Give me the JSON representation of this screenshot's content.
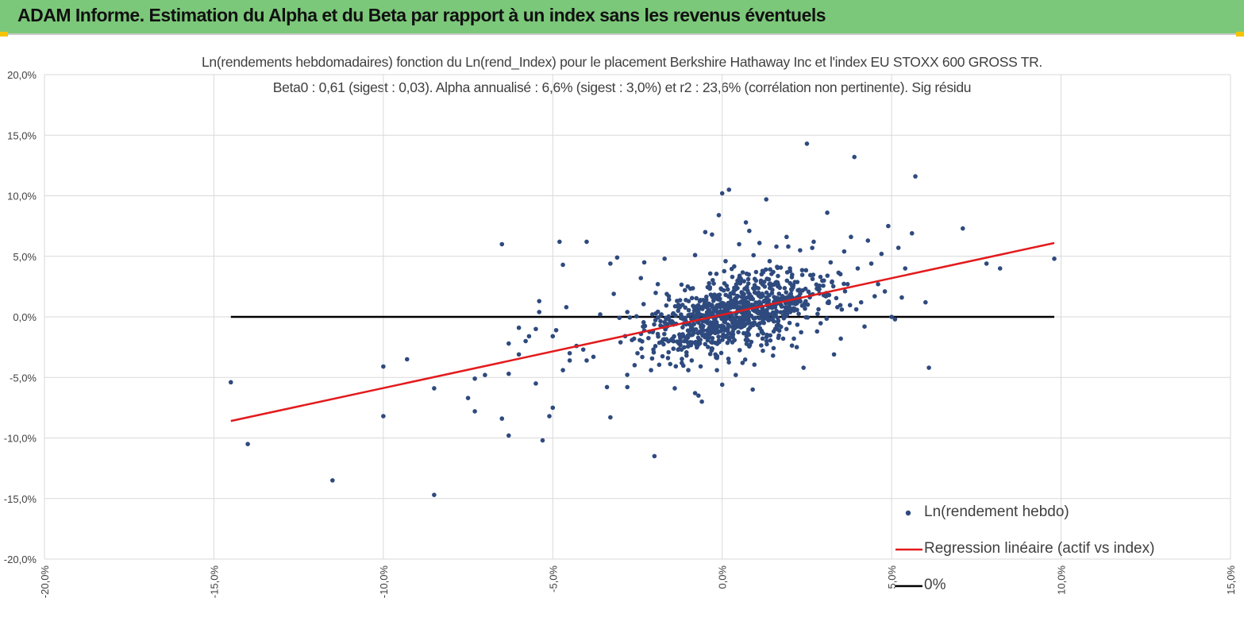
{
  "header": {
    "title": "ADAM Informe. Estimation du Alpha et du Beta par rapport à un index sans les revenus éventuels"
  },
  "colors": {
    "header_bg": "#7cc87a",
    "accent": "#f5c400",
    "points": "#2e4a7e",
    "regression": "#e31a1c",
    "zero_line": "#000000"
  },
  "chart_data": {
    "type": "scatter",
    "title": "Ln(rendements hebdomadaires) fonction du Ln(rend_Index) pour le placement Berkshire Hathaway Inc et l'index EU STOXX 600 GROSS TR.",
    "subtitle": "Beta0 : 0,61 (sigest : 0,03). Alpha annualisé : 6,6% (sigest : 3,0%) et r2 : 23,6% (corrélation non pertinente). Sig résidu",
    "xlim": [
      -0.2,
      0.15
    ],
    "ylim": [
      -0.2,
      0.2
    ],
    "x_ticks": [
      -0.2,
      -0.15,
      -0.1,
      -0.05,
      0.0,
      0.05,
      0.1,
      0.15
    ],
    "x_tick_labels": [
      "-20,0%",
      "-15,0%",
      "-10,0%",
      "-5,0%",
      "0,0%",
      "5,0%",
      "10,0%",
      "15,0%"
    ],
    "y_ticks": [
      0.2,
      0.15,
      0.1,
      0.05,
      0.0,
      -0.05,
      -0.1,
      -0.15,
      -0.2
    ],
    "y_tick_labels": [
      "20,0%",
      "15,0%",
      "10,0%",
      "5,0%",
      "0,0%",
      "-5,0%",
      "-10,0%",
      "-15,0%",
      "-20,0%"
    ],
    "grid": true,
    "legend_position": "bottom-right",
    "series": [
      {
        "name": "Ln(rendement hebdo)",
        "type": "scatter",
        "points": [
          [
            -0.145,
            -0.054
          ],
          [
            -0.14,
            -0.105
          ],
          [
            -0.115,
            -0.135
          ],
          [
            -0.1,
            -0.041
          ],
          [
            -0.1,
            -0.082
          ],
          [
            -0.093,
            -0.035
          ],
          [
            -0.085,
            -0.147
          ],
          [
            -0.085,
            -0.059
          ],
          [
            -0.075,
            -0.067
          ],
          [
            -0.073,
            -0.078
          ],
          [
            -0.073,
            -0.051
          ],
          [
            -0.07,
            -0.048
          ],
          [
            -0.065,
            0.06
          ],
          [
            -0.065,
            -0.084
          ],
          [
            -0.063,
            -0.098
          ],
          [
            -0.063,
            -0.022
          ],
          [
            -0.063,
            -0.047
          ],
          [
            -0.06,
            -0.031
          ],
          [
            -0.06,
            -0.009
          ],
          [
            -0.058,
            -0.02
          ],
          [
            -0.057,
            -0.016
          ],
          [
            -0.055,
            -0.01
          ],
          [
            -0.055,
            -0.055
          ],
          [
            -0.054,
            0.013
          ],
          [
            -0.054,
            0.004
          ],
          [
            -0.053,
            -0.102
          ],
          [
            -0.051,
            -0.082
          ],
          [
            -0.05,
            -0.016
          ],
          [
            -0.05,
            -0.075
          ],
          [
            -0.049,
            -0.011
          ],
          [
            -0.048,
            0.062
          ],
          [
            -0.047,
            -0.044
          ],
          [
            -0.047,
            0.043
          ],
          [
            -0.046,
            0.008
          ],
          [
            -0.045,
            -0.036
          ],
          [
            -0.045,
            -0.03
          ],
          [
            -0.043,
            -0.024
          ],
          [
            -0.041,
            -0.027
          ],
          [
            -0.04,
            0.062
          ],
          [
            -0.04,
            -0.036
          ],
          [
            -0.038,
            -0.033
          ],
          [
            -0.036,
            0.002
          ],
          [
            -0.034,
            -0.058
          ],
          [
            -0.033,
            -0.083
          ],
          [
            -0.033,
            0.044
          ],
          [
            -0.032,
            0.019
          ],
          [
            -0.031,
            0.049
          ],
          [
            -0.03,
            -0.021
          ],
          [
            -0.028,
            -0.058
          ],
          [
            -0.028,
            0.004
          ],
          [
            -0.026,
            -0.018
          ],
          [
            -0.025,
            -0.03
          ],
          [
            -0.024,
            0.032
          ],
          [
            -0.023,
            0.045
          ],
          [
            -0.021,
            -0.044
          ],
          [
            -0.02,
            -0.115
          ],
          [
            -0.019,
            0.027
          ],
          [
            -0.017,
            0.048
          ],
          [
            -0.016,
            -0.034
          ],
          [
            -0.015,
            -0.019
          ],
          [
            -0.014,
            -0.059
          ],
          [
            -0.013,
            0.005
          ],
          [
            -0.012,
            -0.027
          ],
          [
            -0.011,
            0.022
          ],
          [
            -0.01,
            -0.044
          ],
          [
            -0.009,
            -0.036
          ],
          [
            -0.008,
            0.051
          ],
          [
            -0.008,
            -0.063
          ],
          [
            -0.007,
            -0.065
          ],
          [
            -0.006,
            -0.07
          ],
          [
            -0.005,
            0.07
          ],
          [
            -0.004,
            -0.017
          ],
          [
            -0.003,
            0.068
          ],
          [
            -0.002,
            -0.031
          ],
          [
            -0.001,
            0.084
          ],
          [
            0.0,
            0.102
          ],
          [
            0.0,
            -0.056
          ],
          [
            0.001,
            0.046
          ],
          [
            0.002,
            0.105
          ],
          [
            0.003,
            -0.021
          ],
          [
            0.004,
            -0.048
          ],
          [
            0.005,
            0.06
          ],
          [
            0.006,
            -0.038
          ],
          [
            0.007,
            0.078
          ],
          [
            0.008,
            0.071
          ],
          [
            0.009,
            -0.06
          ],
          [
            0.01,
            0.037
          ],
          [
            0.011,
            0.061
          ],
          [
            0.012,
            -0.028
          ],
          [
            0.013,
            0.097
          ],
          [
            0.014,
            0.046
          ],
          [
            0.015,
            -0.032
          ],
          [
            0.016,
            0.058
          ],
          [
            0.017,
            0.024
          ],
          [
            0.018,
            -0.018
          ],
          [
            0.019,
            0.066
          ],
          [
            0.02,
            0.04
          ],
          [
            0.021,
            0.007
          ],
          [
            0.022,
            -0.025
          ],
          [
            0.023,
            0.055
          ],
          [
            0.024,
            -0.042
          ],
          [
            0.025,
            0.143
          ],
          [
            0.026,
            0.018
          ],
          [
            0.027,
            0.062
          ],
          [
            0.028,
            -0.012
          ],
          [
            0.029,
            0.033
          ],
          [
            0.03,
            0.03
          ],
          [
            0.031,
            0.086
          ],
          [
            0.032,
            0.045
          ],
          [
            0.033,
            -0.031
          ],
          [
            0.034,
            0.008
          ],
          [
            0.035,
            -0.018
          ],
          [
            0.036,
            0.054
          ],
          [
            0.037,
            0.027
          ],
          [
            0.038,
            0.066
          ],
          [
            0.039,
            0.132
          ],
          [
            0.04,
            0.04
          ],
          [
            0.041,
            0.012
          ],
          [
            0.042,
            -0.008
          ],
          [
            0.043,
            0.063
          ],
          [
            0.044,
            0.044
          ],
          [
            0.045,
            0.017
          ],
          [
            0.046,
            0.027
          ],
          [
            0.047,
            0.052
          ],
          [
            0.048,
            0.021
          ],
          [
            0.049,
            0.075
          ],
          [
            0.05,
            0.0
          ],
          [
            0.051,
            -0.002
          ],
          [
            0.052,
            0.057
          ],
          [
            0.053,
            0.016
          ],
          [
            0.054,
            0.04
          ],
          [
            0.056,
            0.069
          ],
          [
            0.057,
            0.116
          ],
          [
            0.06,
            0.012
          ],
          [
            0.061,
            -0.042
          ],
          [
            0.071,
            0.073
          ],
          [
            0.078,
            0.044
          ],
          [
            0.082,
            0.04
          ],
          [
            0.098,
            0.048
          ]
        ]
      },
      {
        "name": "Regression linéaire (actif vs index)",
        "type": "line",
        "points": [
          [
            -0.145,
            -0.086
          ],
          [
            0.098,
            0.061
          ]
        ]
      },
      {
        "name": "0%",
        "type": "line",
        "points": [
          [
            -0.145,
            0.0
          ],
          [
            0.098,
            0.0
          ]
        ]
      }
    ]
  }
}
